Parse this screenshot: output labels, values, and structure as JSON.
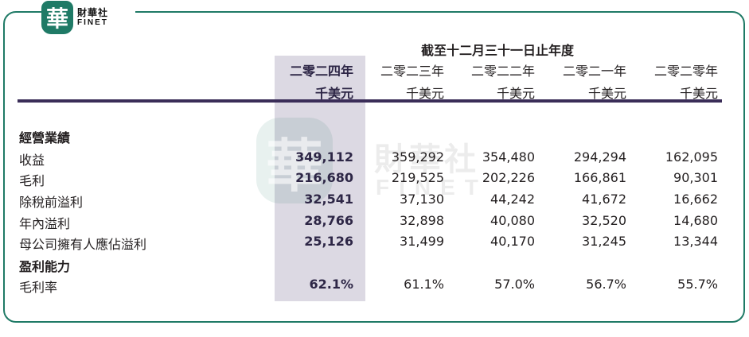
{
  "logo": {
    "cn": "財華社",
    "en": "FINET",
    "mark": "華"
  },
  "watermark": {
    "cn": "財華社",
    "en": "FINET",
    "mark": "華"
  },
  "table": {
    "period_header": "截至十二月三十一日止年度",
    "years": [
      "二零二四年",
      "二零二三年",
      "二零二二年",
      "二零二一年",
      "二零二零年"
    ],
    "units": [
      "千美元",
      "千美元",
      "千美元",
      "千美元",
      "千美元"
    ],
    "rows": [
      {
        "label": "經營業績",
        "section": true,
        "values": [
          "",
          "",
          "",
          "",
          ""
        ]
      },
      {
        "label": "收益",
        "section": false,
        "values": [
          "349,112",
          "359,292",
          "354,480",
          "294,294",
          "162,095"
        ]
      },
      {
        "label": "毛利",
        "section": false,
        "values": [
          "216,680",
          "219,525",
          "202,226",
          "166,861",
          "90,301"
        ]
      },
      {
        "label": "除稅前溢利",
        "section": false,
        "values": [
          "32,541",
          "37,130",
          "44,242",
          "41,672",
          "16,662"
        ]
      },
      {
        "label": "年內溢利",
        "section": false,
        "values": [
          "28,766",
          "32,898",
          "40,080",
          "32,520",
          "14,680"
        ]
      },
      {
        "label": "母公司擁有人應佔溢利",
        "section": false,
        "values": [
          "25,126",
          "31,499",
          "40,170",
          "31,245",
          "13,344"
        ]
      },
      {
        "label": "盈利能力",
        "section": true,
        "values": [
          "",
          "",
          "",
          "",
          ""
        ]
      },
      {
        "label": "毛利率",
        "section": false,
        "values": [
          "62.1%",
          "61.1%",
          "57.0%",
          "56.7%",
          "55.7%"
        ]
      }
    ]
  }
}
